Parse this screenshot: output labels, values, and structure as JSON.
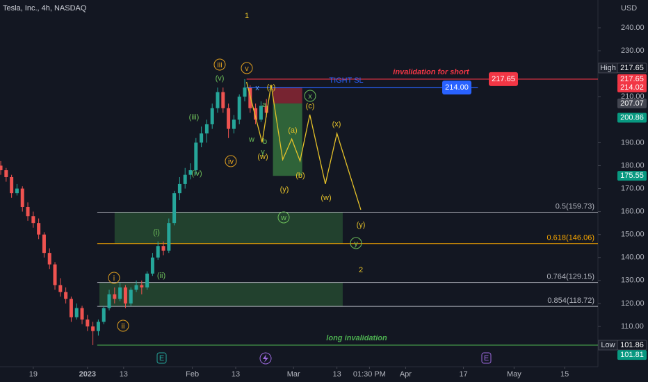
{
  "chart_data": {
    "type": "candlestick",
    "title": "Tesla, Inc., 4h, NASDAQ",
    "currency": "USD",
    "xlim": [
      -9.2,
      156.2
    ],
    "ylim": [
      91.86,
      252.09
    ],
    "xticks": [
      {
        "value": 0,
        "label": "19"
      },
      {
        "value": 15,
        "label": "2023"
      },
      {
        "value": 25,
        "label": "13"
      },
      {
        "value": 44,
        "label": "Feb"
      },
      {
        "value": 56,
        "label": "13"
      },
      {
        "value": 72,
        "label": "Mar"
      },
      {
        "value": 84,
        "label": "13"
      },
      {
        "value": 93,
        "label": "01:30 PM"
      },
      {
        "value": 103,
        "label": "Apr"
      },
      {
        "value": 119,
        "label": "17"
      },
      {
        "value": 133,
        "label": "May"
      },
      {
        "value": 147,
        "label": "15"
      }
    ],
    "yticks": [
      {
        "value": 240,
        "label": "240.00"
      },
      {
        "value": 230,
        "label": "230.00"
      },
      {
        "value": 210,
        "label": "210.00"
      },
      {
        "value": 190,
        "label": "190.00"
      },
      {
        "value": 180,
        "label": "180.00"
      },
      {
        "value": 170,
        "label": "170.00"
      },
      {
        "value": 160,
        "label": "160.00"
      },
      {
        "value": 150,
        "label": "150.00"
      },
      {
        "value": 140,
        "label": "140.00"
      },
      {
        "value": 130,
        "label": "130.00"
      },
      {
        "value": 120,
        "label": "120.00"
      },
      {
        "value": 110,
        "label": "110.00"
      }
    ],
    "up_color": "#26a69a",
    "down_color": "#ef5350",
    "x": [
      -9,
      -7.5,
      -6,
      -4.5,
      -3,
      -1.5,
      0,
      1.5,
      3,
      4.5,
      6,
      7.5,
      9,
      10.5,
      12,
      13.5,
      15,
      16.5,
      18,
      19.5,
      21,
      22.5,
      24,
      25.5,
      27,
      28.5,
      30,
      31.5,
      33,
      34.5,
      36,
      37.5,
      39,
      40.5,
      42,
      43.5,
      45,
      46.5,
      48,
      49.5,
      51,
      52.5,
      54,
      55.5,
      57,
      58.5,
      60,
      61.5,
      63,
      64.5
    ],
    "ohlc": [
      [
        180,
        182,
        176,
        178
      ],
      [
        178,
        179,
        173,
        175
      ],
      [
        175,
        176,
        166,
        168
      ],
      [
        168,
        172,
        167,
        170
      ],
      [
        170,
        171,
        160,
        162
      ],
      [
        162,
        164,
        156,
        158
      ],
      [
        158,
        160,
        153,
        155
      ],
      [
        155,
        157,
        148,
        150
      ],
      [
        150,
        151,
        140,
        142
      ],
      [
        142,
        144,
        135,
        137
      ],
      [
        137,
        138,
        126,
        128
      ],
      [
        128,
        131,
        123,
        125
      ],
      [
        125,
        127,
        120,
        122
      ],
      [
        122,
        123,
        112,
        114
      ],
      [
        114,
        120,
        113,
        118
      ],
      [
        118,
        119,
        111,
        113
      ],
      [
        113,
        115,
        108,
        110
      ],
      [
        110,
        112,
        101.86,
        108
      ],
      [
        108,
        113,
        106,
        112
      ],
      [
        112,
        119,
        111,
        118
      ],
      [
        118,
        126,
        117,
        124
      ],
      [
        124,
        127,
        120,
        122
      ],
      [
        122,
        129,
        121,
        127
      ],
      [
        127,
        128,
        118,
        120
      ],
      [
        120,
        127,
        119,
        126
      ],
      [
        126,
        130,
        125,
        128
      ],
      [
        128,
        130,
        124,
        127
      ],
      [
        127,
        134,
        126,
        133
      ],
      [
        133,
        142,
        132,
        140
      ],
      [
        140,
        147,
        139,
        145
      ],
      [
        145,
        147,
        141,
        143
      ],
      [
        143,
        157,
        142,
        155
      ],
      [
        155,
        169,
        154,
        168
      ],
      [
        168,
        175,
        165,
        172
      ],
      [
        172,
        179,
        170,
        176
      ],
      [
        176,
        181,
        174,
        178
      ],
      [
        178,
        192,
        176,
        190
      ],
      [
        190,
        197,
        188,
        194
      ],
      [
        194,
        200,
        190,
        198
      ],
      [
        198,
        207,
        196,
        205
      ],
      [
        205,
        214,
        203,
        212
      ],
      [
        212,
        214,
        203,
        205
      ],
      [
        205,
        207,
        192,
        196
      ],
      [
        196,
        202,
        194,
        200
      ],
      [
        200,
        211,
        198,
        210
      ],
      [
        210,
        217.65,
        208,
        214
      ],
      [
        214,
        215,
        203,
        205
      ],
      [
        205,
        207,
        198,
        200
      ],
      [
        200,
        208,
        199,
        206
      ],
      [
        206,
        209,
        201,
        203
      ]
    ],
    "projection": {
      "color": "#e6c229",
      "x": [
        59,
        63.3,
        65.8,
        69.0,
        71.5,
        73.8,
        76.5,
        80.8,
        84.0,
        90.6
      ],
      "values": [
        216.4,
        190.1,
        215.2,
        182.6,
        191.6,
        182.0,
        202.2,
        172.0,
        194.0,
        160.8
      ]
    },
    "zones": [
      {
        "x": [
          22.5,
          85.6
        ],
        "y": [
          146.06,
          159.73
        ]
      },
      {
        "x": [
          18.3,
          85.6
        ],
        "y": [
          118.72,
          129.15
        ]
      }
    ],
    "position": {
      "x": [
        66.3,
        74.4
      ],
      "stop": 214.02,
      "entry": 207.07,
      "target": 175.55
    },
    "fibs": [
      {
        "label": "0.5(159.73)",
        "value": 159.73,
        "color": "#b2b5be"
      },
      {
        "label": "0.618(146.06)",
        "value": 146.06,
        "color": "#f7a600"
      },
      {
        "label": "0.764(129.15)",
        "value": 129.15,
        "color": "#b2b5be"
      },
      {
        "label": "0.854(118.72)",
        "value": 118.72,
        "color": "#b2b5be"
      }
    ],
    "fib_start": 17.7,
    "levels": [
      {
        "text": "invalidation for short",
        "value": 217.65,
        "color": "#f23645",
        "x": [
          59,
          156.2
        ]
      },
      {
        "text": "TIGHT SL",
        "value": 214,
        "label": "214.00",
        "color": "#2962ff",
        "x": [
          59,
          123
        ]
      },
      {
        "text": "long invalidation",
        "value": 101.86,
        "color": "#4caf50",
        "x": [
          17.7,
          156.2
        ]
      }
    ],
    "tags": [
      {
        "prefix": "High",
        "value": 217.65,
        "color": "#131722"
      },
      {
        "value": 217.65,
        "color": "#f23645"
      },
      {
        "value": 214.02,
        "color": "#f23645"
      },
      {
        "value": 207.07,
        "color": "#434651"
      },
      {
        "value": 200.86,
        "color": "#089981"
      },
      {
        "value": 175.55,
        "color": "#089981"
      },
      {
        "prefix": "Low",
        "value": 101.86,
        "color": "#131722"
      },
      {
        "value": 101.81,
        "color": "#089981"
      }
    ],
    "annotations": [
      {
        "text": "i",
        "color": "#e0a020",
        "circled": true
      },
      {
        "text": "ii",
        "color": "#e0a020",
        "circled": true
      },
      {
        "text": "iii",
        "color": "#e0a020",
        "circled": true
      },
      {
        "text": "iv",
        "color": "#e0a020",
        "circled": true
      },
      {
        "text": "v",
        "color": "#e0a020",
        "circled": true
      },
      {
        "text": "(i)",
        "color": "#6dbf5a"
      },
      {
        "text": "(ii)",
        "color": "#6dbf5a"
      },
      {
        "text": "(iii)",
        "color": "#6dbf5a"
      },
      {
        "text": "(iv)",
        "color": "#6dbf5a"
      },
      {
        "text": "(v)",
        "color": "#6dbf5a"
      },
      {
        "text": "w",
        "color": "#6dbf5a"
      },
      {
        "text": "x",
        "color": "#5b9cf6"
      },
      {
        "text": "a",
        "color": "#6dbf5a"
      },
      {
        "text": "b",
        "color": "#6dbf5a"
      },
      {
        "text": "y",
        "color": "#6dbf5a"
      },
      {
        "text": "(w)",
        "color": "#e6c229"
      },
      {
        "text": "(x)",
        "color": "#e6c229"
      },
      {
        "text": "(y)",
        "color": "#e6c229"
      },
      {
        "text": "(a)",
        "color": "#e6c229"
      },
      {
        "text": "(b)",
        "color": "#e6c229"
      },
      {
        "text": "(c)",
        "color": "#e6c229"
      },
      {
        "text": "(x)",
        "color": "#e6c229"
      },
      {
        "text": "(w)",
        "color": "#e6c229"
      },
      {
        "text": "(y)",
        "color": "#e6c229"
      },
      {
        "text": "w",
        "color": "#6dbf5a",
        "circled": true
      },
      {
        "text": "x",
        "color": "#6dbf5a",
        "circled": true
      },
      {
        "text": "y",
        "color": "#6dbf5a",
        "circled": true
      },
      {
        "text": "1",
        "color": "#e6c229",
        "big": true
      },
      {
        "text": "2",
        "color": "#e6c229",
        "big": true
      }
    ]
  }
}
